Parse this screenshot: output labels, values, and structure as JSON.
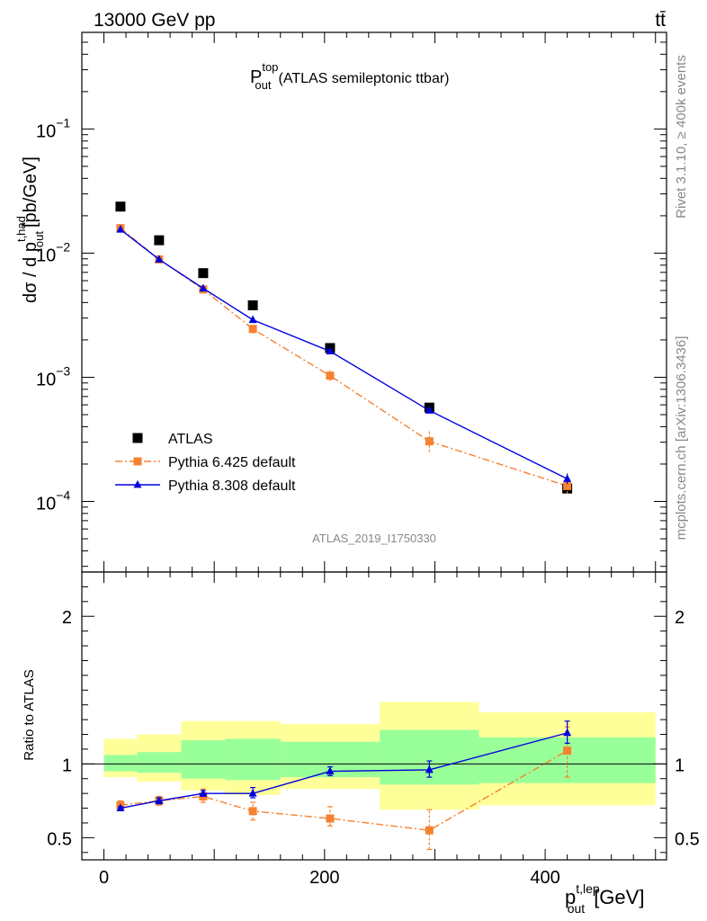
{
  "header": {
    "energy_label": "13000 GeV pp",
    "process_label": "tt̄"
  },
  "side_labels": {
    "rivet": "Rivet 3.1.10, ≥ 400k events",
    "mcplots": "mcplots.cern.ch [arXiv:1306.3436]"
  },
  "chart_data": [
    {
      "type": "scatter",
      "panel": "main",
      "title_main": "P",
      "title_sup": "top",
      "title_sub": "out",
      "title_rest": "(ATLAS semileptonic ttbar)",
      "ylabel_pre": "dσ / d p",
      "ylabel_sup": "t,had",
      "ylabel_sub": "out",
      "ylabel_post": "[pb/GeV]",
      "yscale": "log",
      "ylim": [
        2.7e-05,
        0.6
      ],
      "xlim": [
        -20,
        510
      ],
      "yticks": [
        {
          "value": 0.0001,
          "base": "10",
          "exp": "−4"
        },
        {
          "value": 0.001,
          "base": "10",
          "exp": "−3"
        },
        {
          "value": 0.01,
          "base": "10",
          "exp": "−2"
        },
        {
          "value": 0.1,
          "base": "10",
          "exp": "−1"
        }
      ],
      "watermark": "ATLAS_2019_I1750330",
      "legend_position": "bottom-left",
      "series": [
        {
          "name": "ATLAS",
          "style": "data",
          "color": "#000000",
          "marker": "square",
          "x": [
            15,
            50,
            90,
            135,
            205,
            295,
            420
          ],
          "y": [
            0.0237,
            0.0127,
            0.0069,
            0.0038,
            0.00172,
            0.00057,
            0.000127
          ]
        },
        {
          "name": "Pythia 6.425 default",
          "style": "dashdot",
          "color": "#f58231",
          "marker": "square",
          "x": [
            15,
            50,
            90,
            135,
            205,
            295,
            420
          ],
          "y": [
            0.0159,
            0.0089,
            0.0051,
            0.00245,
            0.00103,
            0.000305,
            0.000133
          ],
          "yerr_lo": [
            0.0159,
            0.0089,
            0.0051,
            0.00225,
            0.00093,
            0.00025,
            0.000115
          ],
          "yerr_hi": [
            0.0159,
            0.0089,
            0.0051,
            0.00267,
            0.00114,
            0.00037,
            0.000153
          ]
        },
        {
          "name": "Pythia 8.308 default",
          "style": "solid",
          "color": "#0000dd",
          "marker": "triangle",
          "x": [
            15,
            50,
            90,
            135,
            205,
            295,
            420
          ],
          "y": [
            0.0155,
            0.0089,
            0.0052,
            0.0029,
            0.00162,
            0.00054,
            0.000152
          ],
          "yerr_lo": [
            0.0155,
            0.0089,
            0.0052,
            0.0029,
            0.00162,
            0.00054,
            0.000138
          ],
          "yerr_hi": [
            0.0155,
            0.0089,
            0.0052,
            0.0029,
            0.00162,
            0.00054,
            0.000168
          ]
        }
      ]
    },
    {
      "type": "scatter",
      "panel": "ratio",
      "ylabel": "Ratio to ATLAS",
      "xlabel_pre": "p",
      "xlabel_sup": "t,lep",
      "xlabel_sub": "out",
      "xlabel_post": "[GeV]",
      "xlim": [
        -20,
        510
      ],
      "ylim": [
        0.35,
        2.3
      ],
      "xticks": [
        0,
        200,
        400
      ],
      "yticks": [
        0.5,
        1,
        2
      ],
      "bands": {
        "bin_edges": [
          0,
          30,
          70,
          110,
          160,
          250,
          340,
          500
        ],
        "yellow_lo": [
          0.91,
          0.88,
          0.82,
          0.79,
          0.83,
          0.69,
          0.72
        ],
        "yellow_hi": [
          1.17,
          1.2,
          1.29,
          1.29,
          1.27,
          1.42,
          1.35
        ],
        "green_lo": [
          0.95,
          0.94,
          0.9,
          0.89,
          0.91,
          0.86,
          0.87
        ],
        "green_hi": [
          1.06,
          1.08,
          1.16,
          1.17,
          1.15,
          1.23,
          1.18
        ],
        "yellow_color": "#ffff99",
        "green_color": "#99ff99"
      },
      "series": [
        {
          "name": "Pythia 6.425 default",
          "color": "#f58231",
          "style": "dashdot",
          "marker": "square",
          "x": [
            15,
            50,
            90,
            135,
            205,
            295,
            420
          ],
          "y": [
            0.72,
            0.75,
            0.78,
            0.68,
            0.63,
            0.55,
            1.09
          ],
          "yerr_lo": [
            0.69,
            0.72,
            0.74,
            0.62,
            0.58,
            0.42,
            0.91
          ],
          "yerr_hi": [
            0.75,
            0.78,
            0.83,
            0.74,
            0.71,
            0.69,
            1.25
          ]
        },
        {
          "name": "Pythia 8.308 default",
          "color": "#0000dd",
          "style": "solid",
          "marker": "triangle",
          "x": [
            15,
            50,
            90,
            135,
            205,
            295,
            420
          ],
          "y": [
            0.7,
            0.75,
            0.8,
            0.8,
            0.95,
            0.96,
            1.21
          ],
          "yerr_lo": [
            0.69,
            0.73,
            0.78,
            0.77,
            0.92,
            0.91,
            1.14
          ],
          "yerr_hi": [
            0.71,
            0.77,
            0.82,
            0.84,
            0.98,
            1.02,
            1.29
          ]
        }
      ]
    }
  ]
}
